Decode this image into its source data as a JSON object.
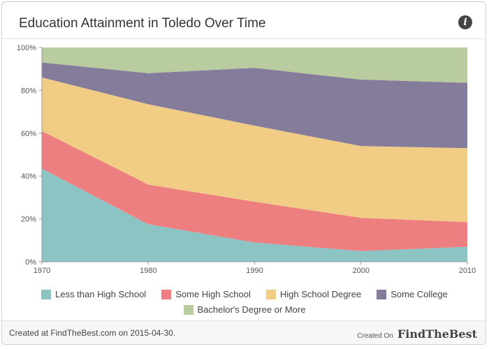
{
  "header": {
    "title": "Education Attainment in Toledo Over Time",
    "info_icon": "info-icon"
  },
  "chart_data": {
    "type": "area",
    "stacked": true,
    "normalized": true,
    "x": [
      "1970",
      "1980",
      "1990",
      "2000",
      "2010"
    ],
    "yticks": [
      "0%",
      "20%",
      "40%",
      "60%",
      "80%",
      "100%"
    ],
    "ylim": [
      0,
      100
    ],
    "grid": false,
    "legend_position": "bottom",
    "series": [
      {
        "name": "Less than High School",
        "color": "#8cc3c3",
        "values": [
          43.5,
          17.5,
          9,
          5,
          7
        ]
      },
      {
        "name": "Some High School",
        "color": "#ee7f80",
        "values": [
          17.5,
          18.5,
          19,
          15.5,
          11.5
        ]
      },
      {
        "name": "High School Degree",
        "color": "#f1cc85",
        "values": [
          25,
          37.5,
          35.5,
          33.5,
          34.5
        ]
      },
      {
        "name": "Some College",
        "color": "#857b9b",
        "values": [
          7,
          14.5,
          27,
          31,
          30.5
        ]
      },
      {
        "name": "Bachelor's Degree or More",
        "color": "#b9cc9f",
        "values": [
          7,
          12,
          9.5,
          15,
          16.5
        ]
      }
    ]
  },
  "footer": {
    "created_text": "Created at FindTheBest.com on 2015-04-30.",
    "created_on_label": "Created On",
    "brand_first": "FindThe",
    "brand_second": "Best"
  }
}
